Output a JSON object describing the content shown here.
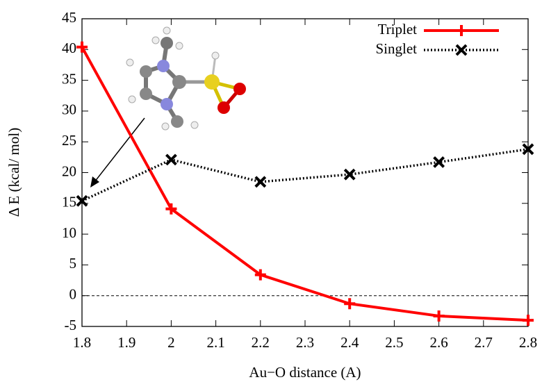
{
  "chart_data": {
    "type": "line",
    "x_label": "Au−O distance (A)",
    "y_label": "Δ E (kcal/ mol)",
    "x": [
      1.8,
      2.0,
      2.2,
      2.4,
      2.6,
      2.8
    ],
    "series": [
      {
        "name": "Triplet",
        "color": "#ff0000",
        "marker": "plus",
        "dash": "solid",
        "values": [
          40.4,
          14.1,
          3.4,
          -1.3,
          -3.3,
          -4.0
        ]
      },
      {
        "name": "Singlet",
        "color": "#000000",
        "marker": "cross",
        "dash": "dotted",
        "values": [
          15.4,
          22.1,
          18.5,
          19.7,
          21.7,
          23.8
        ]
      }
    ],
    "xlim": [
      1.8,
      2.8
    ],
    "xticks": [
      1.8,
      1.9,
      2,
      2.1,
      2.2,
      2.3,
      2.4,
      2.5,
      2.6,
      2.7,
      2.8
    ],
    "ylim": [
      -5,
      45
    ],
    "yticks": [
      -5,
      0,
      5,
      10,
      15,
      20,
      25,
      30,
      35,
      40,
      45
    ],
    "hline": 0,
    "legend": "top-right"
  }
}
